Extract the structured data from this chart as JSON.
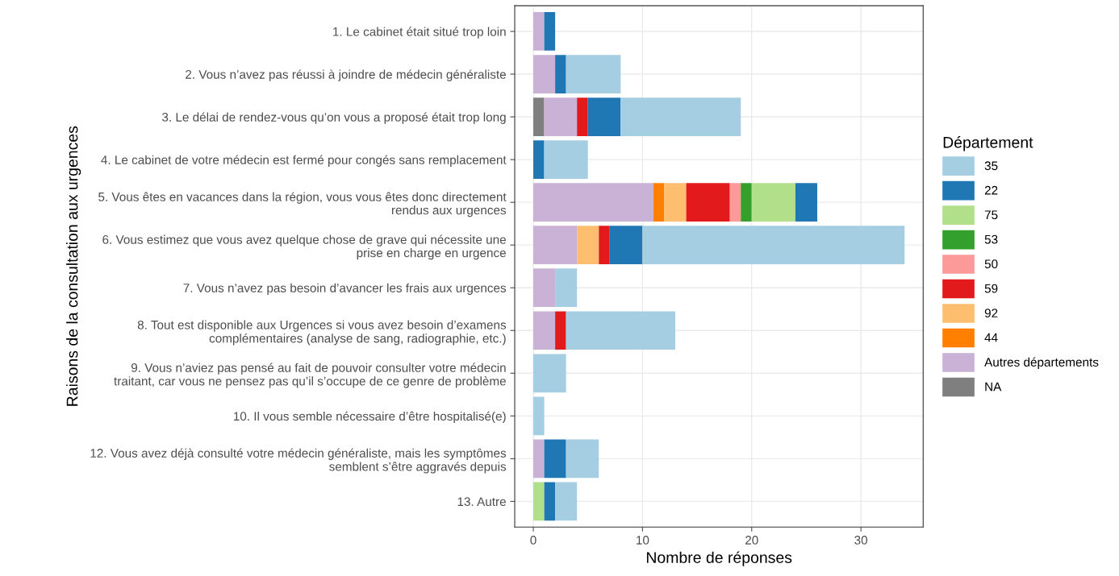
{
  "chart_data": {
    "type": "bar",
    "orientation": "horizontal",
    "stacked": true,
    "xlabel": "Nombre de réponses",
    "ylabel": "Raisons de la consultation aux urgences",
    "legend_title": "Département",
    "categories": [
      "1. Le cabinet était situé trop loin",
      "2. Vous n’avez pas réussi à joindre de médecin généraliste",
      "3. Le délai de rendez-vous qu’on vous a proposé était trop long",
      "4. Le cabinet de votre médecin est fermé pour congés sans remplacement",
      "5. Vous êtes en vacances dans la région, vous vous êtes donc directement\nrendus aux urgences",
      "6. Vous estimez que vous avez quelque chose de grave qui nécessite une\nprise en charge en urgence",
      "7. Vous n’avez pas besoin d’avancer les frais aux urgences",
      "8. Tout est disponible aux Urgences si vous avez besoin d’examens\ncomplémentaires (analyse de sang, radiographie, etc.)",
      "9. Vous n’aviez pas pensé au fait de pouvoir consulter votre médecin\ntraitant, car vous ne pensez pas qu’il s’occupe de ce genre de problème",
      "10. Il vous semble nécessaire d’être hospitalisé(e)",
      "12. Vous avez déjà consulté votre médecin généraliste, mais les symptômes\nsemblent s’être aggravés depuis",
      "13. Autre"
    ],
    "series": [
      {
        "name": "NA",
        "color": "#7f7f7f",
        "values": [
          0,
          0,
          1,
          0,
          0,
          0,
          0,
          0,
          0,
          0,
          0,
          0
        ]
      },
      {
        "name": "Autres départements",
        "color": "#cab2d6",
        "values": [
          1,
          2,
          3,
          0,
          11,
          4,
          2,
          2,
          0,
          0,
          1,
          0
        ]
      },
      {
        "name": "44",
        "color": "#ff7f00",
        "values": [
          0,
          0,
          0,
          0,
          1,
          0,
          0,
          0,
          0,
          0,
          0,
          0
        ]
      },
      {
        "name": "92",
        "color": "#fdbf6f",
        "values": [
          0,
          0,
          0,
          0,
          2,
          2,
          0,
          0,
          0,
          0,
          0,
          0
        ]
      },
      {
        "name": "59",
        "color": "#e31a1c",
        "values": [
          0,
          0,
          1,
          0,
          4,
          1,
          0,
          1,
          0,
          0,
          0,
          0
        ]
      },
      {
        "name": "50",
        "color": "#fb9a99",
        "values": [
          0,
          0,
          0,
          0,
          1,
          0,
          0,
          0,
          0,
          0,
          0,
          0
        ]
      },
      {
        "name": "53",
        "color": "#33a02c",
        "values": [
          0,
          0,
          0,
          0,
          1,
          0,
          0,
          0,
          0,
          0,
          0,
          0
        ]
      },
      {
        "name": "75",
        "color": "#b2df8a",
        "values": [
          0,
          0,
          0,
          0,
          4,
          0,
          0,
          0,
          0,
          0,
          0,
          1
        ]
      },
      {
        "name": "22",
        "color": "#1f78b4",
        "values": [
          1,
          1,
          3,
          1,
          2,
          3,
          0,
          0,
          0,
          0,
          2,
          1
        ]
      },
      {
        "name": "35",
        "color": "#a6cee3",
        "values": [
          0,
          5,
          11,
          4,
          0,
          24,
          2,
          10,
          3,
          1,
          3,
          2
        ]
      }
    ],
    "xlim": [
      -1.7,
      35.7
    ],
    "xticks": [
      0,
      10,
      20,
      30
    ],
    "grid": true,
    "legend": "right"
  }
}
